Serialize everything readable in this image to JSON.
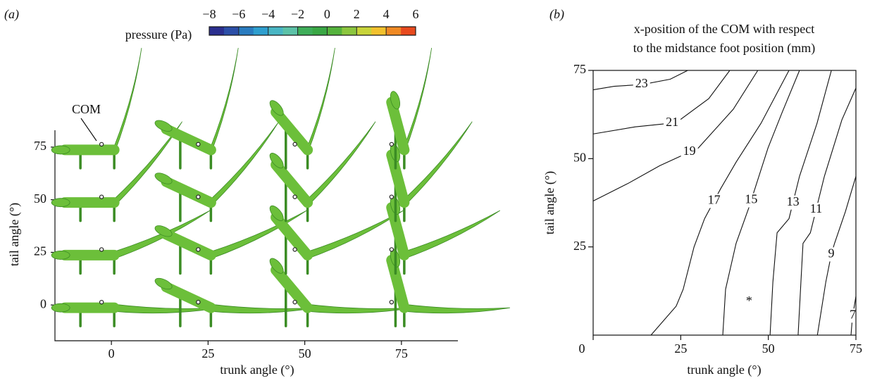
{
  "chart_data": [
    {
      "type": "specimen-grid",
      "panel_label": "(a)",
      "x_label": "trunk angle (°)",
      "y_label": "tail angle (°)",
      "xlim": [
        -14.6,
        89.6
      ],
      "ylim": [
        -17,
        83
      ],
      "xticks": [
        0,
        25,
        50,
        75
      ],
      "yticks": [
        0,
        25,
        50,
        75
      ],
      "annotation": "COM",
      "color": "#6cbf3a",
      "colorbar": {
        "label": "pressure (Pa)",
        "lim": [
          -8,
          6
        ],
        "ticks": [
          {
            "value": -8,
            "label": "−8"
          },
          {
            "value": -6,
            "label": "−6"
          },
          {
            "value": -4,
            "label": "−4"
          },
          {
            "value": -2,
            "label": "−2"
          },
          0,
          2,
          4,
          6
        ],
        "colors": [
          "#2b2f8f",
          "#2c4fa8",
          "#2a7cc0",
          "#2f9fcf",
          "#49b6c4",
          "#5cc2a8",
          "#3fae5a",
          "#3aa845",
          "#55b33d",
          "#8cc63f",
          "#c8d43a",
          "#f2c12e",
          "#f08a24",
          "#e84a1e"
        ]
      }
    },
    {
      "type": "contour",
      "panel_label": "(b)",
      "title": [
        "x-position of the COM with respect",
        "to the midstance foot position (mm)"
      ],
      "x_label": "trunk angle (°)",
      "y_label": "tail angle (°)",
      "xlim": [
        0,
        75
      ],
      "ylim": [
        0,
        75
      ],
      "xticks": [
        0,
        25,
        50,
        75
      ],
      "yticks": [
        25,
        50,
        75
      ],
      "contours": [
        {
          "level": 23,
          "x": [
            0,
            6,
            14,
            22,
            27
          ],
          "y": [
            69.5,
            70.5,
            71,
            72.5,
            75
          ]
        },
        {
          "level": 21,
          "x": [
            0,
            12,
            23.7,
            33,
            39
          ],
          "y": [
            57,
            59,
            60.2,
            67,
            75
          ]
        },
        {
          "level": 19,
          "x": [
            0,
            10,
            19,
            30,
            40,
            47
          ],
          "y": [
            38,
            43,
            48,
            53,
            64,
            75
          ]
        },
        {
          "level": 17,
          "x": [
            16.5,
            23.7,
            25.7,
            28.8,
            31.8,
            36.4,
            40.8,
            47.9,
            55.9
          ],
          "y": [
            0,
            8.2,
            13,
            25,
            33,
            41.5,
            49,
            60,
            75
          ]
        },
        {
          "level": 15,
          "x": [
            37,
            37.8,
            40.8,
            44.4,
            49.9,
            53.9,
            58.9
          ],
          "y": [
            0,
            13,
            26,
            36,
            53,
            63,
            75
          ]
        },
        {
          "level": 13,
          "x": [
            50.5,
            51.3,
            52.5,
            55.9,
            58.9,
            63.9,
            66.9,
            68
          ],
          "y": [
            0,
            15,
            29,
            33,
            45,
            60,
            71,
            75
          ]
        },
        {
          "level": 11,
          "x": [
            58.5,
            59.3,
            59.9,
            62,
            66,
            71,
            75
          ],
          "y": [
            0,
            15,
            26,
            29,
            45,
            61,
            70
          ]
        },
        {
          "level": 9,
          "x": [
            64,
            66.4,
            68,
            68.9,
            72,
            75
          ],
          "y": [
            0,
            15,
            23,
            26,
            35,
            45
          ]
        },
        {
          "level": 7,
          "x": [
            73.6,
            74,
            75
          ],
          "y": [
            0,
            5,
            11
          ]
        }
      ],
      "marker": {
        "label": "*",
        "x": 44.5,
        "y": 10
      }
    }
  ]
}
